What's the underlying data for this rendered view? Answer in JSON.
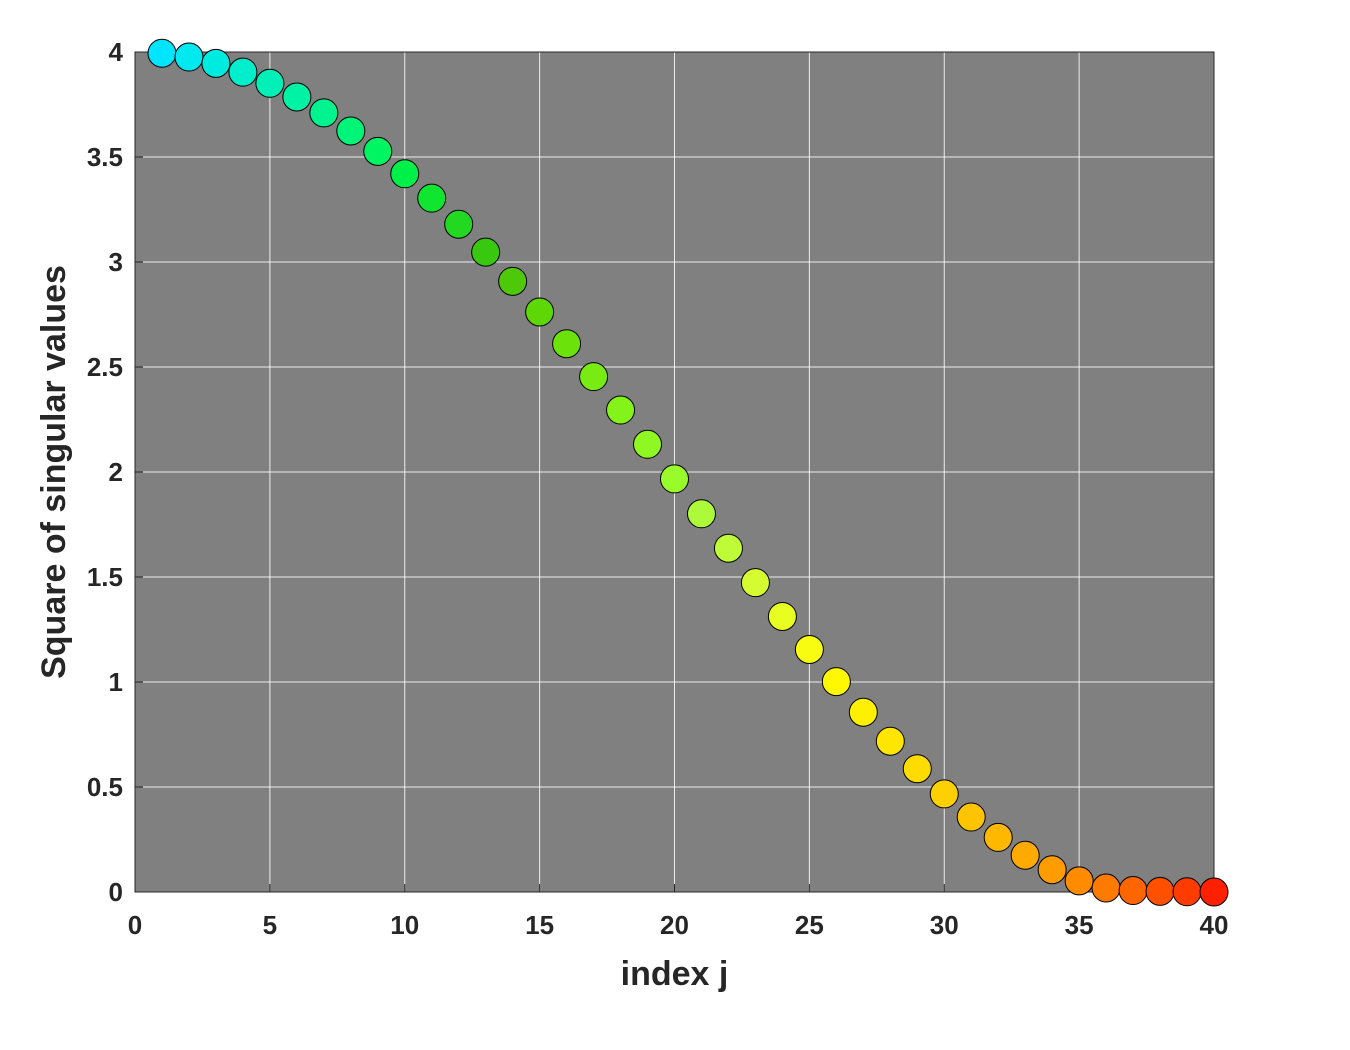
{
  "chart_data": {
    "type": "scatter",
    "title": "",
    "xlabel": "index j",
    "ylabel": "Square of singular values",
    "xlim": [
      0,
      40
    ],
    "ylim": [
      0,
      4
    ],
    "xticks": [
      0,
      5,
      10,
      15,
      20,
      25,
      30,
      35,
      40
    ],
    "yticks": [
      0,
      0.5,
      1,
      1.5,
      2,
      2.5,
      3,
      3.5,
      4
    ],
    "xtick_labels": [
      "0",
      "5",
      "10",
      "15",
      "20",
      "25",
      "30",
      "35",
      "40"
    ],
    "ytick_labels": [
      "0",
      "0.5",
      "1",
      "1.5",
      "2",
      "2.5",
      "3",
      "3.5",
      "4"
    ],
    "grid": true,
    "plot_background": "#808080",
    "series": [
      {
        "x": [
          1,
          2,
          3,
          4,
          5,
          6,
          7,
          8,
          9,
          10,
          11,
          12,
          13,
          14,
          15,
          16,
          17,
          18,
          19,
          20,
          21,
          22,
          23,
          24,
          25,
          26,
          27,
          28,
          29,
          30,
          31,
          32,
          33,
          34,
          35,
          36,
          37,
          38,
          39,
          40
        ],
        "y": [
          3.994,
          3.976,
          3.946,
          3.904,
          3.851,
          3.786,
          3.71,
          3.624,
          3.527,
          3.42,
          3.304,
          3.18,
          3.047,
          2.908,
          2.762,
          2.611,
          2.454,
          2.295,
          2.132,
          1.967,
          1.801,
          1.637,
          1.473,
          1.312,
          1.155,
          1.002,
          0.856,
          0.718,
          0.587,
          0.467,
          0.357,
          0.26,
          0.175,
          0.106,
          0.053,
          0.019,
          0.007,
          0.003,
          0.001,
          0.0
        ],
        "colors": [
          "#00e5ff",
          "#00e8f0",
          "#00ebe0",
          "#00eecc",
          "#00f0b8",
          "#00f2a4",
          "#00f38e",
          "#00f478",
          "#00f563",
          "#00f04a",
          "#10e630",
          "#22d820",
          "#38c810",
          "#4dc90a",
          "#5ed706",
          "#6be20a",
          "#78ec12",
          "#84f31a",
          "#8ff822",
          "#99fc2a",
          "#acfa3a",
          "#c0fb38",
          "#d4fc30",
          "#e8fd20",
          "#f7fc10",
          "#fff800",
          "#fff000",
          "#ffe600",
          "#ffdc00",
          "#ffd000",
          "#ffc400",
          "#ffb800",
          "#ffaa00",
          "#ff9c00",
          "#ff8c00",
          "#ff7a00",
          "#ff6600",
          "#ff5000",
          "#ff3c00",
          "#ff2000"
        ]
      }
    ]
  }
}
